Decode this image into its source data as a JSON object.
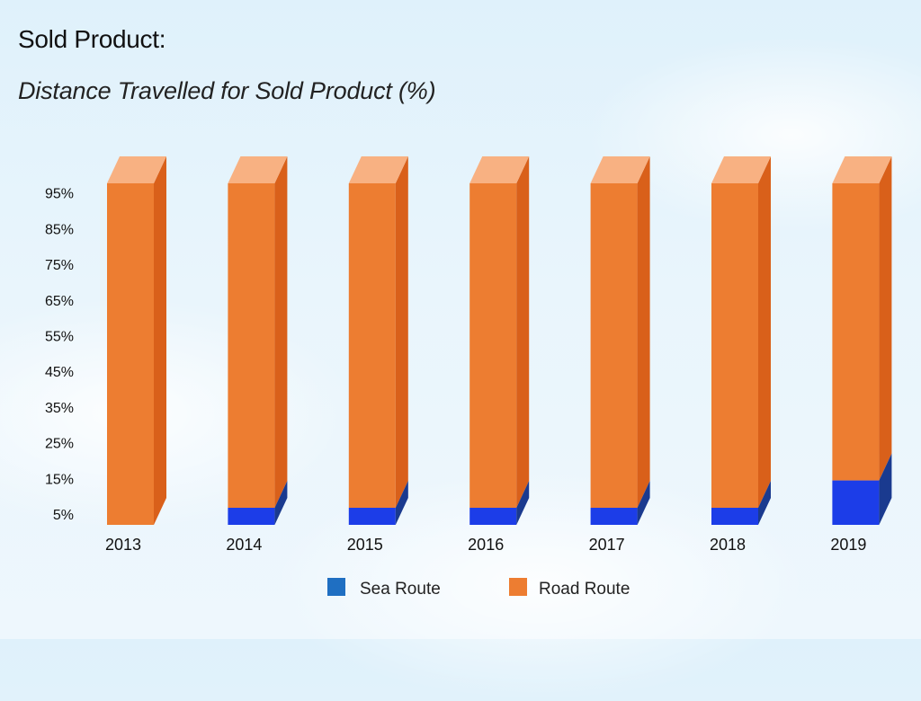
{
  "header": {
    "title": "Sold Product:",
    "subtitle": "Distance Travelled for Sold Product (%)"
  },
  "colors": {
    "road_front": "#ed7d31",
    "road_side": "#d9601a",
    "road_top": "#f8b182",
    "sea_front": "#1c3de8",
    "sea_side": "#1a3a8f",
    "legend_sea": "#1f6fc2",
    "legend_road": "#ed7d31"
  },
  "chart_data": {
    "type": "bar",
    "stacked": true,
    "categories": [
      "2013",
      "2014",
      "2015",
      "2016",
      "2017",
      "2018",
      "2019"
    ],
    "series": [
      {
        "name": "Sea Route",
        "values": [
          0,
          5,
          5,
          5,
          5,
          5,
          13
        ]
      },
      {
        "name": "Road Route",
        "values": [
          100,
          95,
          95,
          95,
          95,
          95,
          87
        ]
      }
    ],
    "y_ticks": [
      "5%",
      "15%",
      "25%",
      "35%",
      "45%",
      "55%",
      "65%",
      "75%",
      "85%",
      "95%"
    ],
    "title": "Sold Product:",
    "subtitle": "Distance Travelled for Sold Product (%)",
    "xlabel": "",
    "ylabel": "",
    "ylim": [
      0,
      100
    ],
    "grid": false,
    "legend_position": "bottom"
  }
}
